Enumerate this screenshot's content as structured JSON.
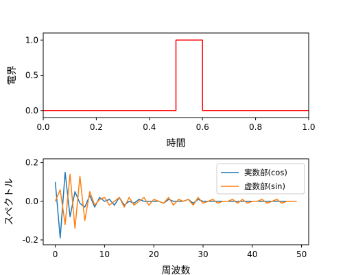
{
  "chart_data": [
    {
      "type": "line",
      "xlabel": "時間",
      "ylabel": "電界",
      "xlim": [
        0,
        1
      ],
      "ylim": [
        -0.1,
        1.1
      ],
      "xticks": [
        "0.0",
        "0.2",
        "0.4",
        "0.6",
        "0.8",
        "1.0"
      ],
      "yticks": [
        "0.0",
        "0.5",
        "1.0"
      ],
      "grid": false,
      "series": [
        {
          "color": "#ff0000",
          "x": [
            0,
            0.5,
            0.5,
            0.6,
            0.6,
            1.0
          ],
          "y": [
            0,
            0,
            1,
            1,
            0,
            0
          ]
        }
      ]
    },
    {
      "type": "line",
      "xlabel": "周波数",
      "ylabel": "スペクトル",
      "xlim": [
        -2.45,
        51.45
      ],
      "ylim": [
        -0.225,
        0.22
      ],
      "xticks": [
        "0",
        "10",
        "20",
        "30",
        "40",
        "50"
      ],
      "yticks": [
        "-0.2",
        "0.0",
        "0.2"
      ],
      "grid": false,
      "legend": "top-right",
      "x": [
        0,
        1,
        2,
        3,
        4,
        5,
        6,
        7,
        8,
        9,
        10,
        11,
        12,
        13,
        14,
        15,
        16,
        17,
        18,
        19,
        20,
        21,
        22,
        23,
        24,
        25,
        26,
        27,
        28,
        29,
        30,
        31,
        32,
        33,
        34,
        35,
        36,
        37,
        38,
        39,
        40,
        41,
        42,
        43,
        44,
        45,
        46,
        47,
        48,
        49
      ],
      "series": [
        {
          "name": "実数部(cos)",
          "color": "#1f77b4",
          "values": [
            0.1,
            -0.19,
            0.15,
            -0.08,
            0.05,
            -0.01,
            -0.03,
            0.03,
            -0.03,
            0.02,
            0.0,
            0.01,
            -0.02,
            0.02,
            -0.02,
            0.0,
            -0.01,
            0.01,
            0.0,
            0.0,
            0.0,
            0.0,
            -0.01,
            0.01,
            0.0,
            0.0,
            0.0,
            0.01,
            -0.01,
            0.01,
            0.0,
            0.0,
            0.0,
            0.0,
            0.0,
            0.0,
            0.0,
            0.0,
            0.0,
            0.0,
            0.0,
            0.0,
            0.0,
            0.0,
            0.0,
            0.0,
            0.0,
            0.0,
            0.0,
            0.0
          ]
        },
        {
          "name": "虚数部(sin)",
          "color": "#ff7f0e",
          "values": [
            0.0,
            0.06,
            -0.12,
            0.14,
            -0.14,
            0.13,
            -0.1,
            0.05,
            -0.02,
            0.01,
            0.02,
            -0.02,
            0.0,
            0.02,
            -0.03,
            0.02,
            -0.02,
            0.0,
            0.02,
            -0.02,
            0.01,
            0.0,
            -0.01,
            0.02,
            -0.02,
            0.01,
            0.0,
            0.01,
            -0.02,
            0.02,
            -0.01,
            0.0,
            0.01,
            -0.01,
            0.0,
            0.0,
            0.01,
            -0.01,
            0.01,
            -0.01,
            0.0,
            0.0,
            0.01,
            -0.01,
            0.0,
            0.01,
            -0.01,
            0.0,
            0.0,
            0.0
          ]
        }
      ]
    }
  ]
}
